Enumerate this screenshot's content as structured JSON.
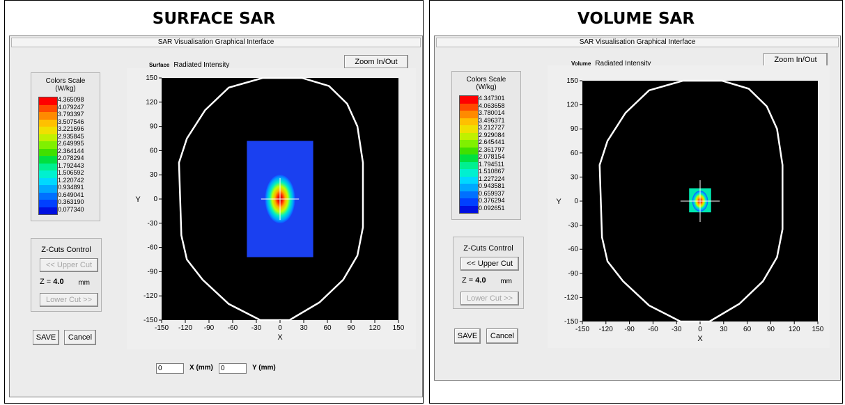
{
  "panels": [
    {
      "heading": "SURFACE SAR",
      "window_title": "SAR Visualisation Graphical Interface",
      "mode_label": "Surface",
      "mode_subtitle": "Radiated Intensity",
      "zoom_button": "Zoom In/Out",
      "colors_scale_title": "Colors Scale",
      "colors_scale_unit": "(W/kg)",
      "scale_values": [
        "4.365098",
        "4.079247",
        "3.793397",
        "3.507546",
        "3.221696",
        "2.935845",
        "2.649995",
        "2.364144",
        "2.078294",
        "1.792443",
        "1.506592",
        "1.220742",
        "0.934891",
        "0.649041",
        "0.363190",
        "0.077340"
      ],
      "zcuts_title": "Z-Cuts Control",
      "upper_cut": "<< Upper Cut",
      "upper_cut_enabled": false,
      "z_label": "Z =",
      "z_value": "4.0",
      "z_unit": "mm",
      "lower_cut": "Lower Cut >>",
      "lower_cut_enabled": false,
      "save": "SAVE",
      "cancel": "Cancel",
      "x_axis_label": "X",
      "y_axis_label": "Y",
      "ticks": [
        "-150",
        "-120",
        "-90",
        "-60",
        "-30",
        "0",
        "30",
        "60",
        "90",
        "120",
        "150"
      ],
      "x_field": "0",
      "x_field_label": "X (mm)",
      "y_field": "0",
      "y_field_label": "Y (mm)"
    },
    {
      "heading": "VOLUME SAR",
      "window_title": "SAR Visualisation Graphical Interface",
      "mode_label": "Volume",
      "mode_subtitle": "Radiated Intensity",
      "zoom_button": "Zoom In/Out",
      "colors_scale_title": "Colors Scale",
      "colors_scale_unit": "(W/kg)",
      "scale_values": [
        "4.347301",
        "4.063658",
        "3.780014",
        "3.496371",
        "3.212727",
        "2.929084",
        "2.645441",
        "2.361797",
        "2.078154",
        "1.794511",
        "1.510867",
        "1.227224",
        "0.943581",
        "0.659937",
        "0.376294",
        "0.092651"
      ],
      "zcuts_title": "Z-Cuts Control",
      "upper_cut": "<< Upper Cut",
      "upper_cut_enabled": true,
      "z_label": "Z =",
      "z_value": "4.0",
      "z_unit": "mm",
      "lower_cut": "Lower Cut >>",
      "lower_cut_enabled": false,
      "save": "SAVE",
      "cancel": "Cancel",
      "x_axis_label": "X",
      "y_axis_label": "Y",
      "ticks": [
        "-150",
        "-120",
        "-90",
        "-60",
        "-30",
        "0",
        "30",
        "60",
        "90",
        "120",
        "150"
      ]
    }
  ],
  "colors": {
    "scale": [
      "#ff0000",
      "#ff4a00",
      "#ff8a00",
      "#ffc000",
      "#f0e000",
      "#c0f000",
      "#80f000",
      "#40e000",
      "#00e040",
      "#00f090",
      "#00f0d0",
      "#00d8ff",
      "#00a8ff",
      "#0070ff",
      "#0040ff",
      "#0010e0"
    ],
    "plot_bg": "#000000",
    "contour": "#ffffff"
  }
}
